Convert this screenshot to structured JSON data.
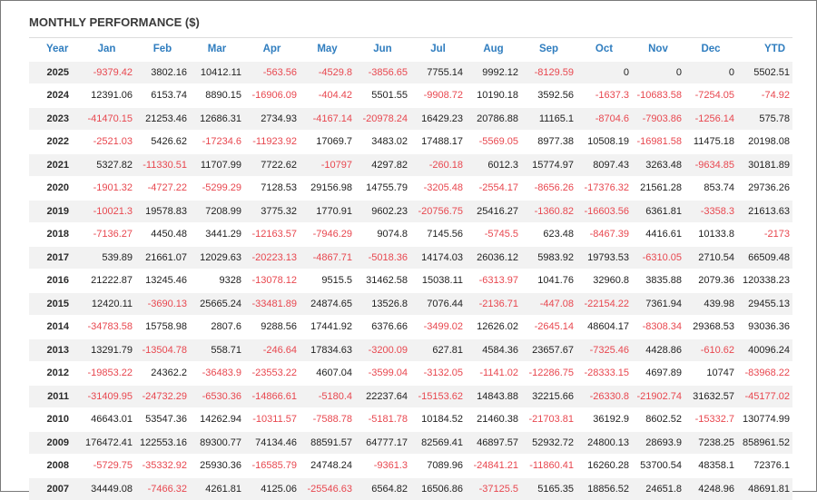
{
  "title": "MONTHLY PERFORMANCE ($)",
  "colors": {
    "header": "#2f7dbf",
    "negative": "#e8474f",
    "stripe": "#f2f2f2"
  },
  "headers": [
    "Year",
    "Jan",
    "Feb",
    "Mar",
    "Apr",
    "May",
    "Jun",
    "Jul",
    "Aug",
    "Sep",
    "Oct",
    "Nov",
    "Dec",
    "YTD"
  ],
  "rows": [
    [
      "2025",
      "-9379.42",
      "3802.16",
      "10412.11",
      "-563.56",
      "-4529.8",
      "-3856.65",
      "7755.14",
      "9992.12",
      "-8129.59",
      "0",
      "0",
      "0",
      "5502.51"
    ],
    [
      "2024",
      "12391.06",
      "6153.74",
      "8890.15",
      "-16906.09",
      "-404.42",
      "5501.55",
      "-9908.72",
      "10190.18",
      "3592.56",
      "-1637.3",
      "-10683.58",
      "-7254.05",
      "-74.92"
    ],
    [
      "2023",
      "-41470.15",
      "21253.46",
      "12686.31",
      "2734.93",
      "-4167.14",
      "-20978.24",
      "16429.23",
      "20786.88",
      "11165.1",
      "-8704.6",
      "-7903.86",
      "-1256.14",
      "575.78"
    ],
    [
      "2022",
      "-2521.03",
      "5426.62",
      "-17234.6",
      "-11923.92",
      "17069.7",
      "3483.02",
      "17488.17",
      "-5569.05",
      "8977.38",
      "10508.19",
      "-16981.58",
      "11475.18",
      "20198.08"
    ],
    [
      "2021",
      "5327.82",
      "-11330.51",
      "11707.99",
      "7722.62",
      "-10797",
      "4297.82",
      "-260.18",
      "6012.3",
      "15774.97",
      "8097.43",
      "3263.48",
      "-9634.85",
      "30181.89"
    ],
    [
      "2020",
      "-1901.32",
      "-4727.22",
      "-5299.29",
      "7128.53",
      "29156.98",
      "14755.79",
      "-3205.48",
      "-2554.17",
      "-8656.26",
      "-17376.32",
      "21561.28",
      "853.74",
      "29736.26"
    ],
    [
      "2019",
      "-10021.3",
      "19578.83",
      "7208.99",
      "3775.32",
      "1770.91",
      "9602.23",
      "-20756.75",
      "25416.27",
      "-1360.82",
      "-16603.56",
      "6361.81",
      "-3358.3",
      "21613.63"
    ],
    [
      "2018",
      "-7136.27",
      "4450.48",
      "3441.29",
      "-12163.57",
      "-7946.29",
      "9074.8",
      "7145.56",
      "-5745.5",
      "623.48",
      "-8467.39",
      "4416.61",
      "10133.8",
      "-2173"
    ],
    [
      "2017",
      "539.89",
      "21661.07",
      "12029.63",
      "-20223.13",
      "-4867.71",
      "-5018.36",
      "14174.03",
      "26036.12",
      "5983.92",
      "19793.53",
      "-6310.05",
      "2710.54",
      "66509.48"
    ],
    [
      "2016",
      "21222.87",
      "13245.46",
      "9328",
      "-13078.12",
      "9515.5",
      "31462.58",
      "15038.11",
      "-6313.97",
      "1041.76",
      "32960.8",
      "3835.88",
      "2079.36",
      "120338.23"
    ],
    [
      "2015",
      "12420.11",
      "-3690.13",
      "25665.24",
      "-33481.89",
      "24874.65",
      "13526.8",
      "7076.44",
      "-2136.71",
      "-447.08",
      "-22154.22",
      "7361.94",
      "439.98",
      "29455.13"
    ],
    [
      "2014",
      "-34783.58",
      "15758.98",
      "2807.6",
      "9288.56",
      "17441.92",
      "6376.66",
      "-3499.02",
      "12626.02",
      "-2645.14",
      "48604.17",
      "-8308.34",
      "29368.53",
      "93036.36"
    ],
    [
      "2013",
      "13291.79",
      "-13504.78",
      "558.71",
      "-246.64",
      "17834.63",
      "-3200.09",
      "627.81",
      "4584.36",
      "23657.67",
      "-7325.46",
      "4428.86",
      "-610.62",
      "40096.24"
    ],
    [
      "2012",
      "-19853.22",
      "24362.2",
      "-36483.9",
      "-23553.22",
      "4607.04",
      "-3599.04",
      "-3132.05",
      "-1141.02",
      "-12286.75",
      "-28333.15",
      "4697.89",
      "10747",
      "-83968.22"
    ],
    [
      "2011",
      "-31409.95",
      "-24732.29",
      "-6530.36",
      "-14866.61",
      "-5180.4",
      "22237.64",
      "-15153.62",
      "14843.88",
      "32215.66",
      "-26330.8",
      "-21902.74",
      "31632.57",
      "-45177.02"
    ],
    [
      "2010",
      "46643.01",
      "53547.36",
      "14262.94",
      "-10311.57",
      "-7588.78",
      "-5181.78",
      "10184.52",
      "21460.38",
      "-21703.81",
      "36192.9",
      "8602.52",
      "-15332.7",
      "130774.99"
    ],
    [
      "2009",
      "176472.41",
      "122553.16",
      "89300.77",
      "74134.46",
      "88591.57",
      "64777.17",
      "82569.41",
      "46897.57",
      "52932.72",
      "24800.13",
      "28693.9",
      "7238.25",
      "858961.52"
    ],
    [
      "2008",
      "-5729.75",
      "-35332.92",
      "25930.36",
      "-16585.79",
      "24748.24",
      "-9361.3",
      "7089.96",
      "-24841.21",
      "-11860.41",
      "16260.28",
      "53700.54",
      "48358.1",
      "72376.1"
    ],
    [
      "2007",
      "34449.08",
      "-7466.32",
      "4261.81",
      "4125.06",
      "-25546.63",
      "6564.82",
      "16506.86",
      "-37125.5",
      "5165.35",
      "18856.52",
      "24651.8",
      "4248.96",
      "48691.81"
    ]
  ]
}
